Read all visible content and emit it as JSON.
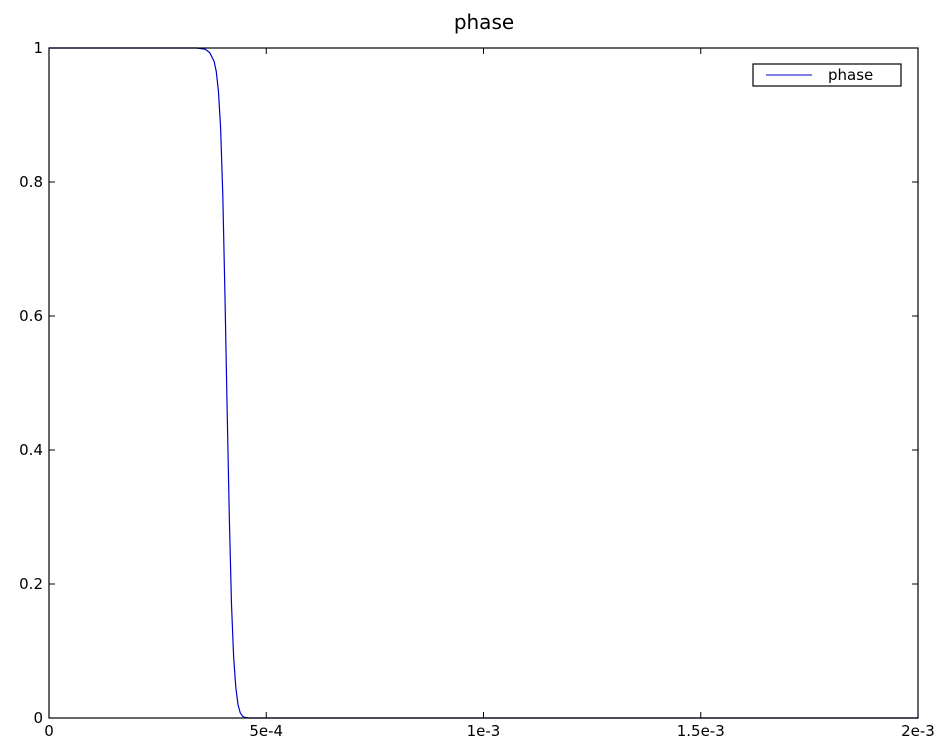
{
  "chart_data": {
    "type": "line",
    "title": "phase",
    "xlabel": "",
    "ylabel": "",
    "xlim": [
      0,
      0.002
    ],
    "ylim": [
      0,
      1
    ],
    "x_ticks": [
      {
        "value": 0,
        "label": "0"
      },
      {
        "value": 0.0005,
        "label": "5e-4"
      },
      {
        "value": 0.001,
        "label": "1e-3"
      },
      {
        "value": 0.0015,
        "label": "1.5e-3"
      },
      {
        "value": 0.002,
        "label": "2e-3"
      }
    ],
    "y_ticks": [
      {
        "value": 0,
        "label": "0"
      },
      {
        "value": 0.2,
        "label": "0.2"
      },
      {
        "value": 0.4,
        "label": "0.4"
      },
      {
        "value": 0.6,
        "label": "0.6"
      },
      {
        "value": 0.8,
        "label": "0.8"
      },
      {
        "value": 1,
        "label": "1"
      }
    ],
    "grid": false,
    "legend": {
      "position": "top-right",
      "entries": [
        "phase"
      ]
    },
    "series": [
      {
        "name": "phase",
        "color": "#0000cc",
        "x": [
          0,
          0.0002,
          0.00034,
          0.00036,
          0.00037,
          0.00038,
          0.000385,
          0.00039,
          0.000395,
          0.0004,
          0.000405,
          0.00041,
          0.000415,
          0.00042,
          0.000425,
          0.00043,
          0.000435,
          0.00044,
          0.000445,
          0.00045,
          0.00046,
          0.0005,
          0.001,
          0.0015,
          0.002
        ],
        "y": [
          1,
          1,
          1,
          0.998,
          0.993,
          0.98,
          0.965,
          0.935,
          0.88,
          0.78,
          0.63,
          0.46,
          0.3,
          0.17,
          0.09,
          0.045,
          0.02,
          0.008,
          0.003,
          0.001,
          0,
          0,
          0,
          0,
          0
        ]
      }
    ]
  }
}
